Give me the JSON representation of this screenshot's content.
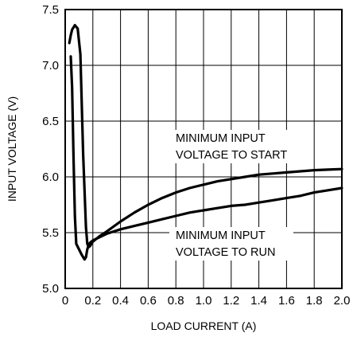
{
  "chart_data": {
    "type": "line",
    "title": "",
    "xlabel": "LOAD CURRENT (A)",
    "ylabel": "INPUT VOLTAGE (V)",
    "xlim": [
      0,
      2.0
    ],
    "ylim": [
      5.0,
      7.5
    ],
    "x_ticks": [
      "0",
      "0.2",
      "0.4",
      "0.6",
      "0.8",
      "1.0",
      "1.2",
      "1.4",
      "1.6",
      "1.8",
      "2.0"
    ],
    "y_ticks": [
      "5.0",
      "5.5",
      "6.0",
      "6.5",
      "7.0",
      "7.5"
    ],
    "grid": true,
    "legend": "none",
    "series": [
      {
        "x": [
          0.03,
          0.04,
          0.05,
          0.07,
          0.09,
          0.11,
          0.13,
          0.15,
          0.16,
          0.17,
          0.18,
          0.2,
          0.25,
          0.3,
          0.4,
          0.5,
          0.6,
          0.7,
          0.8,
          0.9,
          1.0,
          1.1,
          1.2,
          1.3,
          1.4,
          1.5,
          1.6,
          1.7,
          1.8,
          1.9,
          2.0
        ],
        "values": [
          7.2,
          7.27,
          7.32,
          7.36,
          7.33,
          7.1,
          6.2,
          5.55,
          5.4,
          5.37,
          5.38,
          5.42,
          5.47,
          5.51,
          5.6,
          5.68,
          5.75,
          5.81,
          5.86,
          5.9,
          5.93,
          5.96,
          5.98,
          6.0,
          6.02,
          6.03,
          6.04,
          6.05,
          6.06,
          6.065,
          6.07
        ]
      },
      {
        "x": [
          0.04,
          0.05,
          0.06,
          0.07,
          0.08,
          0.1,
          0.12,
          0.14,
          0.15,
          0.16,
          0.17,
          0.18,
          0.2,
          0.3,
          0.4,
          0.5,
          0.6,
          0.7,
          0.8,
          0.9,
          1.0,
          1.1,
          1.2,
          1.3,
          1.4,
          1.5,
          1.6,
          1.7,
          1.8,
          1.9,
          2.0
        ],
        "values": [
          7.08,
          6.8,
          6.2,
          5.65,
          5.4,
          5.35,
          5.3,
          5.26,
          5.28,
          5.35,
          5.39,
          5.41,
          5.43,
          5.49,
          5.53,
          5.56,
          5.59,
          5.62,
          5.65,
          5.68,
          5.7,
          5.72,
          5.74,
          5.75,
          5.77,
          5.79,
          5.81,
          5.83,
          5.86,
          5.88,
          5.9
        ]
      }
    ],
    "annotations": [
      {
        "lines": [
          "MINIMUM INPUT",
          "VOLTAGE TO START"
        ]
      },
      {
        "lines": [
          "MINIMUM INPUT",
          "VOLTAGE TO RUN"
        ]
      }
    ]
  }
}
